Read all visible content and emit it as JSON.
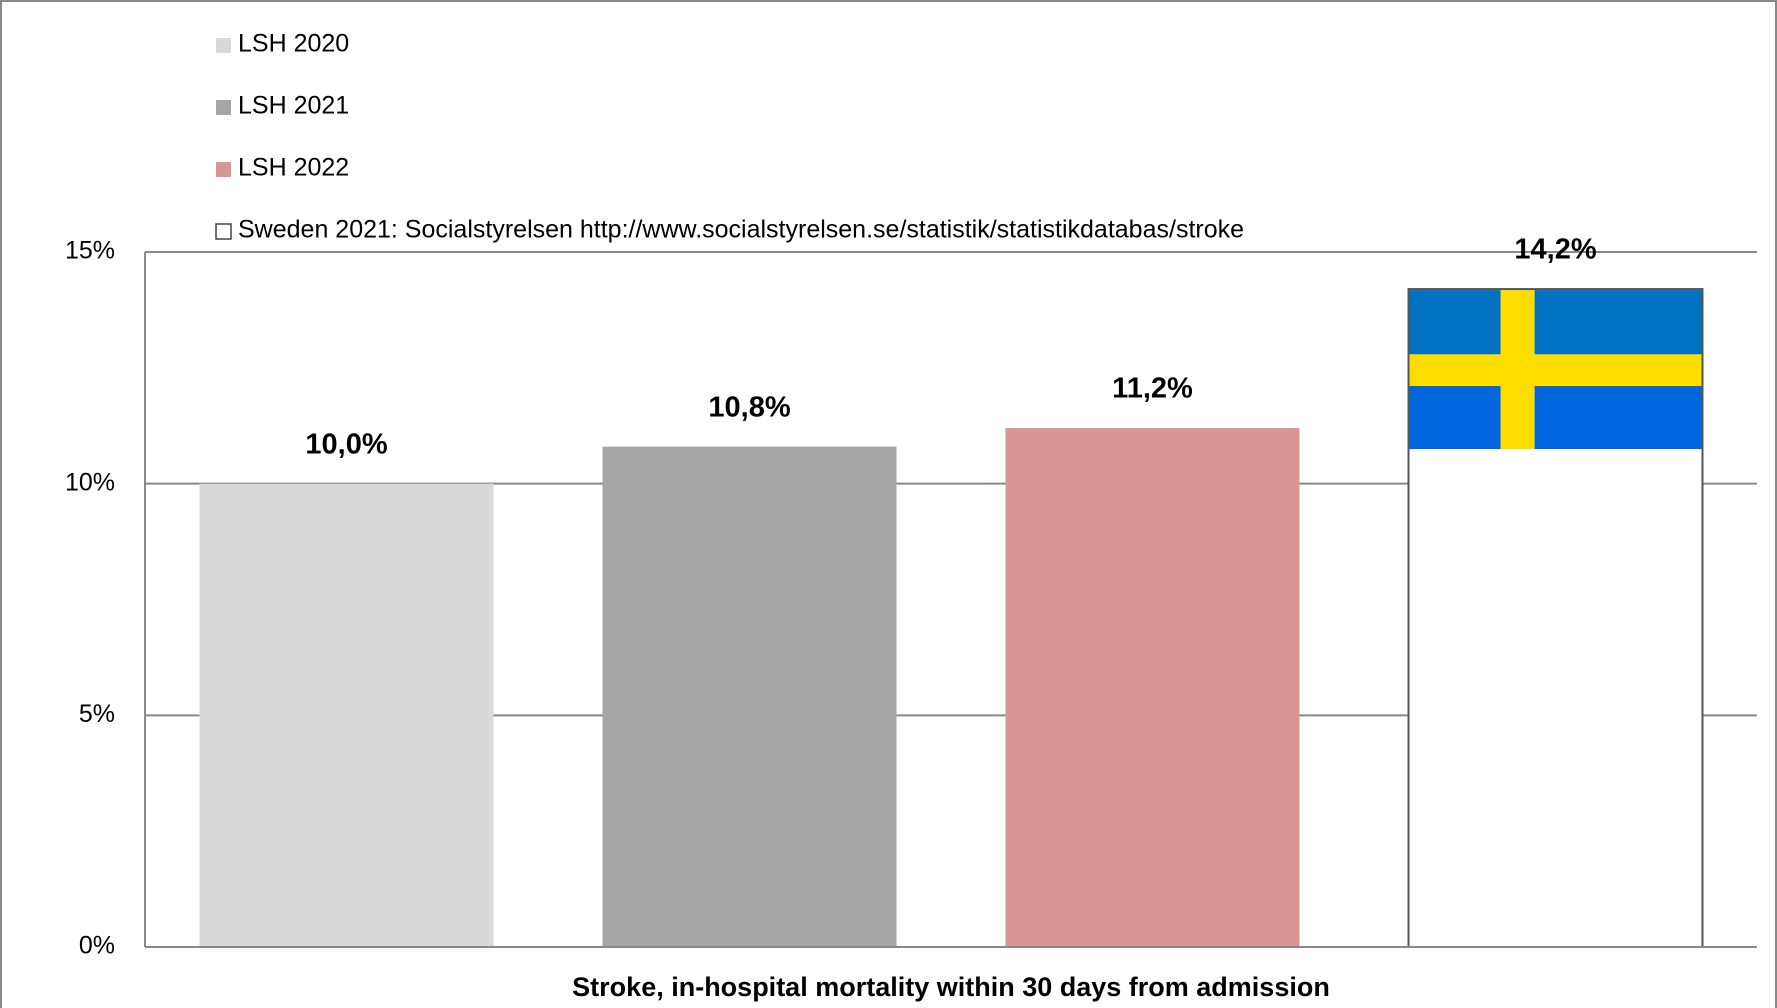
{
  "chart_data": {
    "type": "bar",
    "x_label": "Stroke, in-hospital mortality within 30 days from admission",
    "series": [
      {
        "name": "LSH 2020",
        "color": "#d9d9d9",
        "values": [
          10.0
        ],
        "value_labels": [
          "10,0%"
        ]
      },
      {
        "name": "LSH 2021",
        "color": "#a6a6a6",
        "values": [
          10.8
        ],
        "value_labels": [
          "10,8%"
        ]
      },
      {
        "name": "LSH 2022",
        "color": "#d99694",
        "values": [
          11.2
        ],
        "value_labels": [
          "11,2%"
        ]
      },
      {
        "name": "Sweden 2021: Socialstyrelsen http://www.socialstyrelsen.se/statistik/statistikdatabas/stroke",
        "color": "#ffffff",
        "values": [
          14.2
        ],
        "value_labels": [
          "14,2%"
        ]
      }
    ],
    "ylim": [
      0,
      15
    ],
    "yticks": [
      {
        "value": 0,
        "label": "0%"
      },
      {
        "value": 5,
        "label": "5%"
      },
      {
        "value": 10,
        "label": "10%"
      },
      {
        "value": 15,
        "label": "15%"
      }
    ],
    "grid": true
  }
}
